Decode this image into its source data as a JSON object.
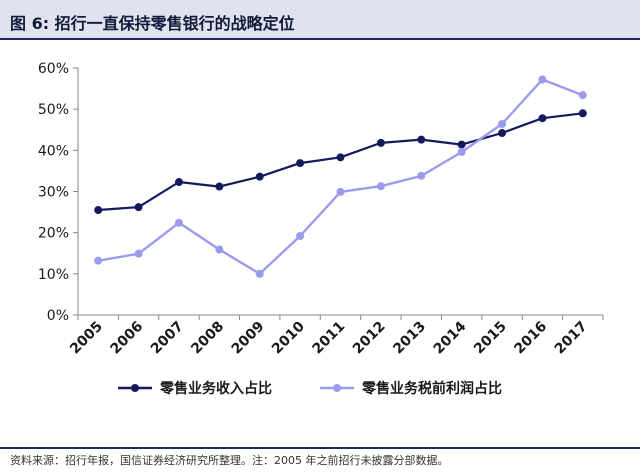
{
  "figure": {
    "title": "图 6:  招行一直保持零售银行的战略定位",
    "source_note": "资料来源：招行年报，国信证券经济研究所整理。注：2005 年之前招行未披露分部数据。"
  },
  "colors": {
    "series1": "#141a5e",
    "series2": "#9b9bee",
    "axis": "#888888",
    "title_bg": "#dfe3ee",
    "rule": "#1f2a5c"
  },
  "chart_data": {
    "type": "line",
    "title": "",
    "xlabel": "",
    "ylabel": "",
    "categories": [
      "2005",
      "2006",
      "2007",
      "2008",
      "2009",
      "2010",
      "2011",
      "2012",
      "2013",
      "2014",
      "2015",
      "2016",
      "2017"
    ],
    "ylim": [
      0,
      60
    ],
    "yticks": [
      0,
      10,
      20,
      30,
      40,
      50,
      60
    ],
    "ytick_labels": [
      "0%",
      "10%",
      "20%",
      "30%",
      "40%",
      "50%",
      "60%"
    ],
    "grid": false,
    "legend_position": "bottom",
    "series": [
      {
        "name": "零售业务收入占比",
        "marker": "circle",
        "values": [
          25.5,
          26.2,
          32.3,
          31.2,
          33.6,
          36.9,
          38.3,
          41.8,
          42.6,
          41.4,
          44.2,
          47.8,
          49.0
        ]
      },
      {
        "name": "零售业务税前利润占比",
        "marker": "circle",
        "values": [
          13.2,
          14.9,
          22.4,
          15.9,
          10.0,
          19.2,
          29.9,
          31.3,
          33.8,
          39.6,
          46.4,
          57.2,
          53.4
        ]
      }
    ]
  }
}
